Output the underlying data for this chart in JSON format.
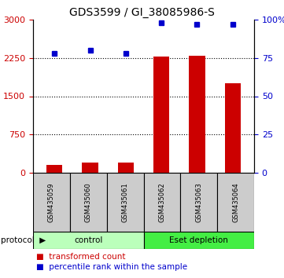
{
  "title": "GDS3599 / GI_38085986-S",
  "samples": [
    "GSM435059",
    "GSM435060",
    "GSM435061",
    "GSM435062",
    "GSM435063",
    "GSM435064"
  ],
  "bar_values": [
    150,
    200,
    200,
    2270,
    2290,
    1760
  ],
  "dot_values": [
    78,
    80,
    78,
    98,
    97,
    97
  ],
  "bar_color": "#cc0000",
  "dot_color": "#0000cc",
  "ylim_left": [
    0,
    3000
  ],
  "ylim_right": [
    0,
    100
  ],
  "yticks_left": [
    0,
    750,
    1500,
    2250,
    3000
  ],
  "yticks_right": [
    0,
    25,
    50,
    75,
    100
  ],
  "groups": [
    {
      "label": "control",
      "start": 0,
      "end": 3,
      "color": "#bbffbb"
    },
    {
      "label": "Eset depletion",
      "start": 3,
      "end": 6,
      "color": "#44ee44"
    }
  ],
  "protocol_label": "protocol",
  "legend_items": [
    {
      "label": "transformed count",
      "color": "#cc0000"
    },
    {
      "label": "percentile rank within the sample",
      "color": "#0000cc"
    }
  ],
  "sample_box_color": "#cccccc",
  "title_fontsize": 10,
  "tick_fontsize": 8,
  "axis_label_fontsize": 8
}
